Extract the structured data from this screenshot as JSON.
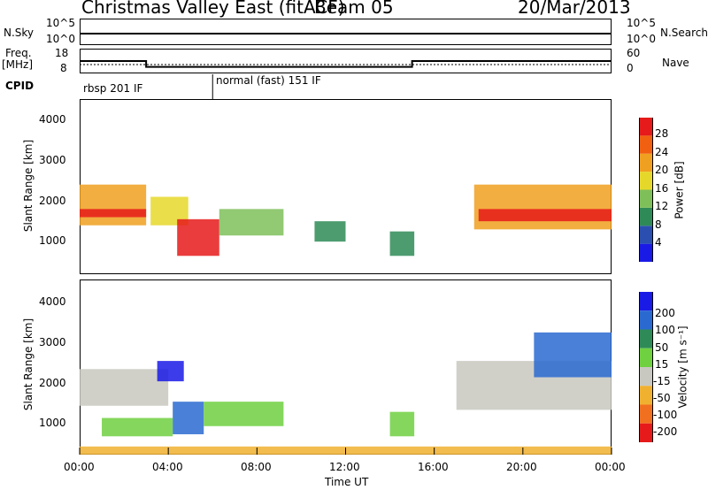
{
  "header": {
    "station": "Christmas Valley East (fitACF)",
    "beam": "Beam 05",
    "date": "20/Mar/2013"
  },
  "sky_panel": {
    "left_label": "N.Sky",
    "left_ticks": [
      "10^5",
      "10^0"
    ],
    "right_ticks": [
      "10^5",
      "10^0"
    ],
    "right_label": "N.Search"
  },
  "freq_panel": {
    "left_label_1": "Freq.",
    "left_label_2": "[MHz]",
    "left_ticks": [
      "18",
      "8"
    ],
    "right_ticks": [
      "60",
      "0"
    ],
    "right_label": "Nave"
  },
  "cpid": {
    "label": "CPID",
    "segments": [
      {
        "text": "rbsp 201 IF",
        "start_hour": 0
      },
      {
        "text": "normal (fast) 151 IF",
        "start_hour": 6
      }
    ]
  },
  "power_panel": {
    "ylabel": "Slant Range [km]",
    "yticks": [
      "4000",
      "3000",
      "2000",
      "1000"
    ],
    "colorbar_label": "Power [dB]",
    "colorbar_ticks": [
      "28",
      "24",
      "20",
      "16",
      "12",
      "8",
      "4"
    ],
    "colors": [
      "#1a1ae6",
      "#2a4fb0",
      "#2e8b57",
      "#7fbf5a",
      "#e6d82a",
      "#f0a020",
      "#f06010",
      "#e61a1a"
    ]
  },
  "velocity_panel": {
    "ylabel": "Slant Range [km]",
    "yticks": [
      "4000",
      "3000",
      "2000",
      "1000"
    ],
    "colorbar_label": "Velocity [m s⁻¹]",
    "colorbar_ticks": [
      "200",
      "100",
      "50",
      "15",
      "-15",
      "-50",
      "-100",
      "-200"
    ],
    "colors": [
      "#1a1ae6",
      "#2a6ad0",
      "#2e8b57",
      "#6fd040",
      "#c8c8c0",
      "#f0b030",
      "#f07020",
      "#e61a1a"
    ]
  },
  "xaxis": {
    "label": "Time UT",
    "ticks": [
      "00:00",
      "04:00",
      "08:00",
      "12:00",
      "16:00",
      "20:00",
      "00:00"
    ]
  },
  "chart_data": {
    "type": "heatmap",
    "title": "Christmas Valley East (fitACF) Beam 05 20/Mar/2013",
    "xlabel": "Time UT",
    "ylabel": "Slant Range [km]",
    "xlim_hours": [
      0,
      24
    ],
    "ylim_km": [
      200,
      4500
    ],
    "x_ticks": [
      "00:00",
      "04:00",
      "08:00",
      "12:00",
      "16:00",
      "20:00",
      "00:00"
    ],
    "y_ticks": [
      1000,
      2000,
      3000,
      4000
    ],
    "freq_mhz": [
      {
        "start_hour": 0,
        "end_hour": 3.0,
        "value": 13
      },
      {
        "start_hour": 3.0,
        "end_hour": 15.0,
        "value": 10
      },
      {
        "start_hour": 15.0,
        "end_hour": 24,
        "value": 13
      }
    ],
    "power_regions": [
      {
        "t0": 0.0,
        "t1": 3.0,
        "r0": 1400,
        "r1": 2400,
        "db": 22
      },
      {
        "t0": 0.0,
        "t1": 3.0,
        "r0": 1600,
        "r1": 1800,
        "db": 28
      },
      {
        "t0": 3.2,
        "t1": 4.9,
        "r0": 1400,
        "r1": 2100,
        "db": 18
      },
      {
        "t0": 4.4,
        "t1": 6.3,
        "r0": 650,
        "r1": 1550,
        "db": 30
      },
      {
        "t0": 6.3,
        "t1": 9.2,
        "r0": 1150,
        "r1": 1800,
        "db": 12
      },
      {
        "t0": 10.6,
        "t1": 12.0,
        "r0": 1000,
        "r1": 1500,
        "db": 8
      },
      {
        "t0": 14.0,
        "t1": 15.1,
        "r0": 650,
        "r1": 1250,
        "db": 8
      },
      {
        "t0": 17.8,
        "t1": 24.0,
        "r0": 1300,
        "r1": 2400,
        "db": 20
      },
      {
        "t0": 18.0,
        "t1": 24.0,
        "r0": 1500,
        "r1": 1800,
        "db": 28
      }
    ],
    "velocity_regions": [
      {
        "t0": 0.0,
        "t1": 4.0,
        "r0": 1400,
        "r1": 2300,
        "v": 0
      },
      {
        "t0": 3.5,
        "t1": 4.7,
        "r0": 2000,
        "r1": 2500,
        "v": 200
      },
      {
        "t0": 1.0,
        "t1": 4.2,
        "r0": 650,
        "r1": 1100,
        "v": 40
      },
      {
        "t0": 4.2,
        "t1": 5.6,
        "r0": 700,
        "r1": 1500,
        "v": 150
      },
      {
        "t0": 5.6,
        "t1": 9.2,
        "r0": 900,
        "r1": 1500,
        "v": 40
      },
      {
        "t0": 14.0,
        "t1": 15.1,
        "r0": 650,
        "r1": 1250,
        "v": 40
      },
      {
        "t0": 17.0,
        "t1": 24.0,
        "r0": 1300,
        "r1": 2500,
        "v": 0
      },
      {
        "t0": 20.5,
        "t1": 24.0,
        "r0": 2100,
        "r1": 3200,
        "v": 120
      },
      {
        "t0": 0.0,
        "t1": 24.0,
        "r0": 200,
        "r1": 400,
        "v": -60
      }
    ]
  }
}
